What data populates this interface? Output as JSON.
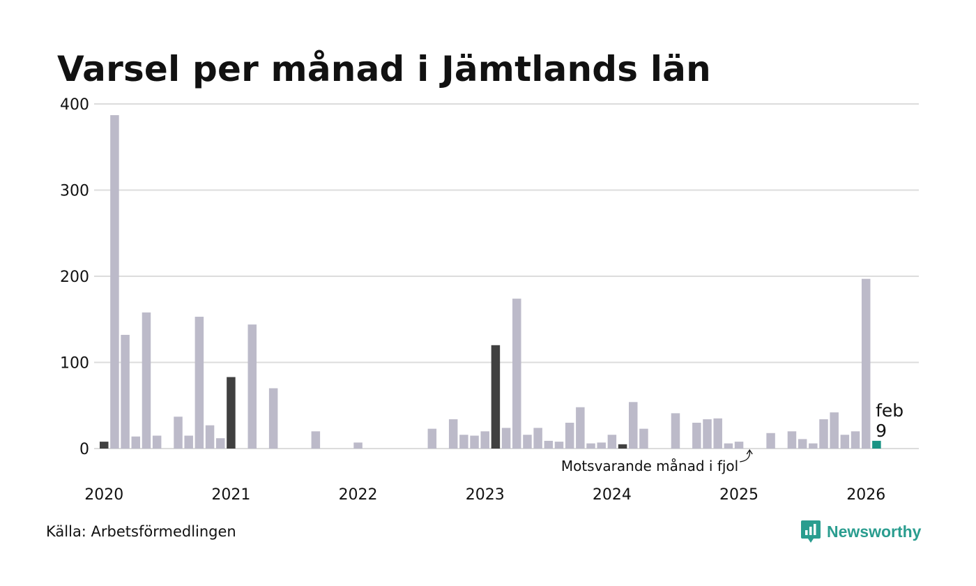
{
  "chart_data": {
    "type": "bar",
    "title": "Varsel per månad i Jämtlands län",
    "source": "Källa: Arbetsförmedlingen",
    "brand": "Newsworthy",
    "ylim": [
      0,
      400
    ],
    "yticks": [
      "0",
      "100",
      "200",
      "300",
      "400"
    ],
    "xticks": [
      "2020",
      "2021",
      "2022",
      "2023",
      "2024",
      "2025",
      "2026"
    ],
    "start": "2020-01",
    "values": [
      8,
      387,
      132,
      14,
      158,
      15,
      0,
      37,
      15,
      153,
      27,
      12,
      83,
      0,
      144,
      0,
      70,
      0,
      0,
      0,
      20,
      0,
      0,
      0,
      7,
      0,
      0,
      0,
      0,
      0,
      0,
      23,
      0,
      34,
      16,
      15,
      20,
      120,
      24,
      174,
      16,
      24,
      9,
      8,
      30,
      48,
      6,
      7,
      16,
      5,
      54,
      23,
      0,
      0,
      41,
      0,
      30,
      34,
      35,
      6,
      8,
      0,
      0,
      18,
      0,
      20,
      11,
      6,
      34,
      42,
      16,
      20,
      197,
      9
    ],
    "highlight_dark_months": [
      0,
      12,
      37,
      49
    ],
    "current_index": 73,
    "current_label": "feb",
    "current_value": "9",
    "annotation": "Motsvarande månad i fjol",
    "colors": {
      "bar": "#bcbac9",
      "dark": "#404040",
      "current": "#1a9384",
      "grid": "#dcdcdc",
      "brand": "#2a9d8f"
    }
  }
}
